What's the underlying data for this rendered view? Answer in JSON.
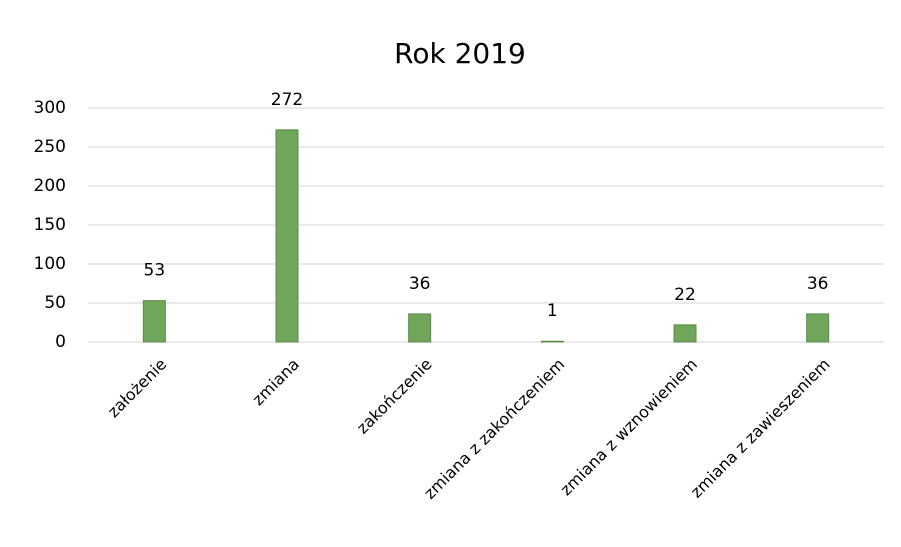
{
  "chart_data": {
    "type": "bar",
    "title": "Rok 2019",
    "categories": [
      "założenie",
      "zmiana",
      "zakończenie",
      "zmiana z zakończeniem",
      "zmiana z wznowieniem",
      "zmiana z zawieszeniem"
    ],
    "values": [
      53,
      272,
      36,
      1,
      22,
      36
    ],
    "color": "#70a65a",
    "ylim": [
      0,
      300
    ],
    "yticks": [
      0,
      50,
      100,
      150,
      200,
      250,
      300
    ],
    "grid": true
  }
}
